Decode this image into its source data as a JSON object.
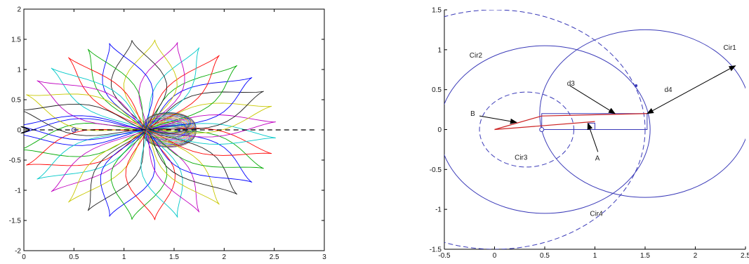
{
  "chart_data": [
    {
      "type": "line",
      "title": "",
      "xlabel": "",
      "ylabel": "",
      "xlim": [
        0,
        3
      ],
      "ylim": [
        -2,
        2
      ],
      "xticks": [
        "0",
        "0.5",
        "1",
        "1.5",
        "2",
        "2.5",
        "3"
      ],
      "yticks": [
        "-2",
        "-1.5",
        "-1",
        "-0.5",
        "0",
        "0.5",
        "1",
        "1.5",
        "2"
      ],
      "grid": false,
      "legend": "none",
      "colors": [
        "#0000ff",
        "#00aa00",
        "#ff0000",
        "#00c8c8",
        "#c000c0",
        "#c8c800",
        "#202020"
      ],
      "loop_family": {
        "count": 36,
        "center_a": [
          1.22,
          0
        ],
        "center_b": [
          1.55,
          0
        ],
        "outer_tip_radius": 1.3,
        "envelope_x_range": [
          0.0,
          2.5
        ],
        "envelope_y_range": [
          -1.55,
          1.55
        ]
      },
      "dashed_axis": {
        "from": [
          2.9,
          0
        ],
        "to": [
          0.05,
          0
        ],
        "arrow_at": [
          0.05,
          0
        ],
        "style": "dashed"
      },
      "markers": [
        {
          "x": 0.5,
          "y": 0,
          "shape": "circle"
        },
        {
          "x": 1.55,
          "y": 0,
          "shape": "dot"
        }
      ]
    },
    {
      "type": "line",
      "title": "",
      "xlabel": "",
      "ylabel": "",
      "xlim": [
        -0.5,
        2.5
      ],
      "ylim": [
        -1.5,
        1.5
      ],
      "xticks": [
        "-0.5",
        "0",
        "0.5",
        "1",
        "1.5",
        "2",
        "2.5"
      ],
      "yticks": [
        "-1.5",
        "-1",
        "-0.5",
        "0",
        "0.5",
        "1",
        "1.5"
      ],
      "grid": false,
      "legend": "none",
      "line_color": "#3a3ab8",
      "accent_color": "#cc2222",
      "circles": [
        {
          "label": "Cir1",
          "cx": 1.5,
          "cy": 0.2,
          "r": 1.05,
          "style": "solid",
          "label_at": [
            2.28,
            1.0
          ]
        },
        {
          "label": "Cir2",
          "cx": 0.5,
          "cy": 0.0,
          "r": 1.05,
          "style": "solid",
          "label_at": [
            -0.25,
            0.9
          ]
        },
        {
          "label": "Cir3",
          "cx": 0.32,
          "cy": 0.0,
          "r": 0.47,
          "style": "dashed",
          "label_at": [
            0.2,
            -0.38
          ]
        },
        {
          "label": "Cir4",
          "cx": 0.0,
          "cy": 0.0,
          "r": 1.5,
          "style": "dashed",
          "label_at": [
            0.95,
            -1.08
          ]
        }
      ],
      "arrows": [
        {
          "label": "d3",
          "from": [
            0.75,
            0.55
          ],
          "to": [
            1.2,
            0.2
          ],
          "label_at": [
            0.75,
            0.55
          ]
        },
        {
          "label": "d4",
          "from": [
            2.4,
            0.8
          ],
          "to": [
            1.52,
            0.2
          ],
          "bidirectional": true,
          "label_at": [
            1.72,
            0.47
          ]
        },
        {
          "label": "B",
          "from": [
            -0.15,
            0.17
          ],
          "to": [
            0.22,
            0.09
          ],
          "label_at": [
            -0.18,
            0.17
          ]
        },
        {
          "label": "A",
          "from": [
            1.03,
            -0.28
          ],
          "to": [
            0.93,
            0.08
          ],
          "label_at": [
            1.03,
            -0.3
          ]
        }
      ],
      "red_lines": [
        {
          "from": [
            0,
            0
          ],
          "to": [
            0.47,
            0.17
          ]
        },
        {
          "from": [
            0.47,
            0.17
          ],
          "to": [
            1.52,
            0.2
          ]
        },
        {
          "from": [
            0,
            0
          ],
          "to": [
            1.0,
            0.1
          ]
        }
      ],
      "rectangle": {
        "x1": 0.47,
        "x2": 1.52,
        "y1": 0.0,
        "y2": 0.2
      },
      "small_rect": {
        "x1": 0.94,
        "x2": 1.0,
        "y1": 0.0,
        "y2": 0.08
      },
      "points": [
        {
          "x": 0.47,
          "y": 0.0,
          "shape": "circle"
        },
        {
          "x": 1.41,
          "y": 0.55,
          "shape": "dot"
        }
      ]
    }
  ]
}
